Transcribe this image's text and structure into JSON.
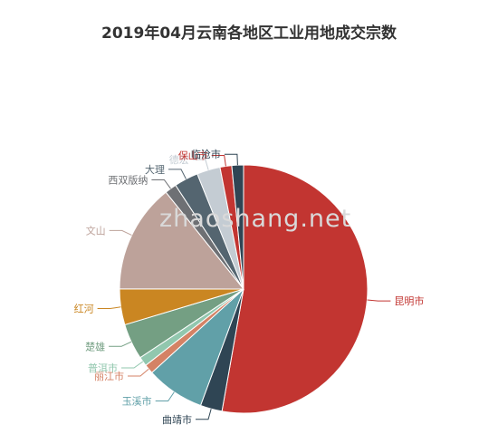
{
  "chart_data": {
    "type": "pie",
    "title": "2019年04月云南各地区工业用地成交宗数",
    "slices": [
      {
        "label": "昆明市",
        "value": 52.0,
        "color": "#c23531"
      },
      {
        "label": "曲靖市",
        "value": 2.8,
        "color": "#2f4554"
      },
      {
        "label": "玉溪市",
        "value": 7.5,
        "color": "#61a0a8"
      },
      {
        "label": "丽江市",
        "value": 1.2,
        "color": "#d48265"
      },
      {
        "label": "普洱市",
        "value": 1.2,
        "color": "#91c7ae"
      },
      {
        "label": "楚雄",
        "value": 4.6,
        "color": "#749f83"
      },
      {
        "label": "红河",
        "value": 4.6,
        "color": "#ca8622"
      },
      {
        "label": "文山",
        "value": 14.0,
        "color": "#bda29a"
      },
      {
        "label": "西双版纳",
        "value": 1.5,
        "color": "#6e7074"
      },
      {
        "label": "大理",
        "value": 3.1,
        "color": "#546570"
      },
      {
        "label": "德宏",
        "value": 3.0,
        "color": "#c4ccd3"
      },
      {
        "label": "保山市",
        "value": 1.5,
        "color": "#c23531"
      },
      {
        "label": "临沧市",
        "value": 1.5,
        "color": "#2f4554"
      }
    ]
  },
  "watermark": "zhaoshang.net"
}
